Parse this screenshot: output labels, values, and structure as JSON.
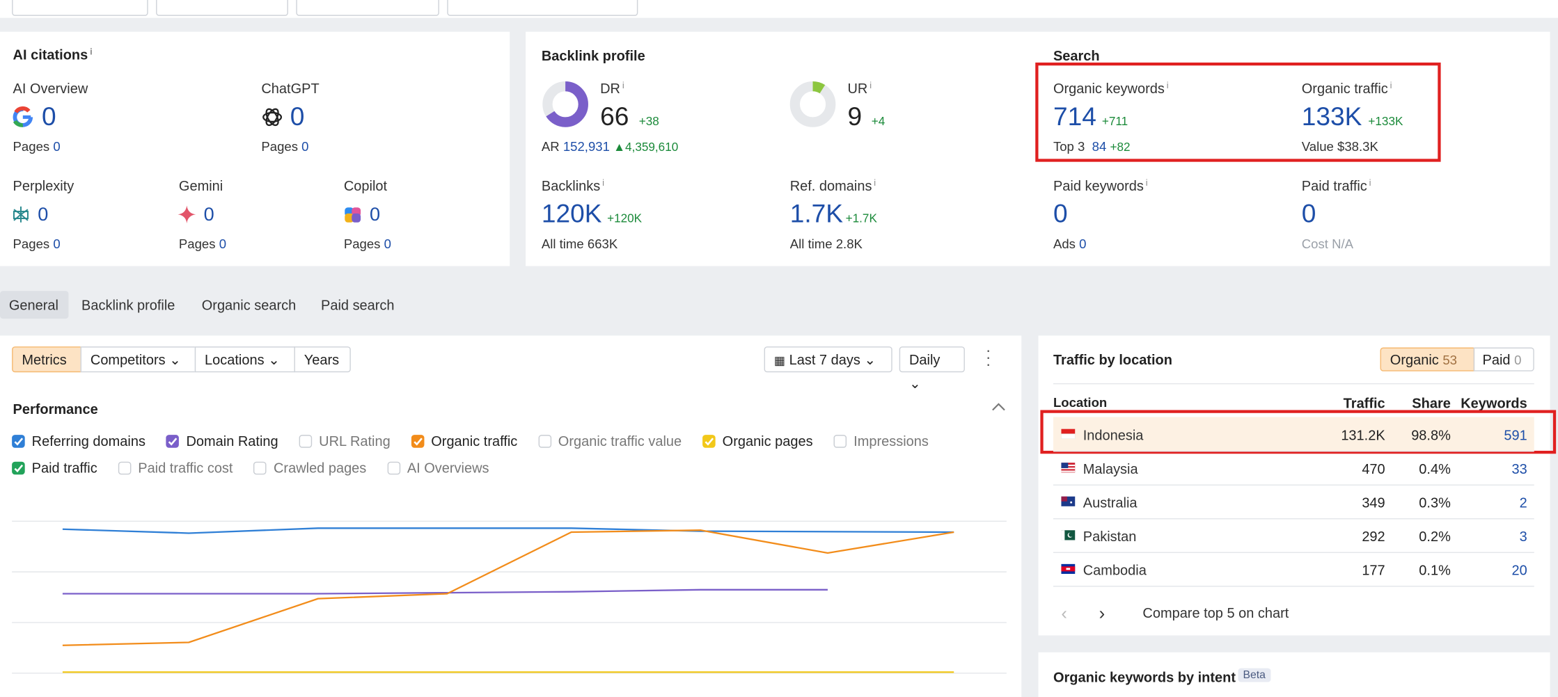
{
  "ai_citations": {
    "title": "AI citations",
    "info": "i",
    "items": [
      {
        "name": "AI Overview",
        "value": "0",
        "pages_label": "Pages",
        "pages": "0"
      },
      {
        "name": "ChatGPT",
        "value": "0",
        "pages_label": "Pages",
        "pages": "0"
      },
      {
        "name": "Perplexity",
        "value": "0",
        "pages_label": "Pages",
        "pages": "0"
      },
      {
        "name": "Gemini",
        "value": "0",
        "pages_label": "Pages",
        "pages": "0"
      },
      {
        "name": "Copilot",
        "value": "0",
        "pages_label": "Pages",
        "pages": "0"
      }
    ]
  },
  "backlink_profile": {
    "title": "Backlink profile",
    "dr": {
      "label": "DR",
      "info": "i",
      "value": "66",
      "change": "+38"
    },
    "ar": {
      "label": "AR",
      "value": "152,931",
      "change": "4,359,610"
    },
    "ur": {
      "label": "UR",
      "info": "i",
      "value": "9",
      "change": "+4"
    },
    "backlinks": {
      "label": "Backlinks",
      "info": "i",
      "value": "120K",
      "change": "+120K",
      "sub_label": "All time",
      "sub_value": "663K"
    },
    "ref_domains": {
      "label": "Ref. domains",
      "info": "i",
      "value": "1.7K",
      "change": "+1.7K",
      "sub_label": "All time",
      "sub_value": "2.8K"
    }
  },
  "search": {
    "title": "Search",
    "organic_keywords": {
      "label": "Organic keywords",
      "info": "i",
      "value": "714",
      "change": "+711",
      "sub_label": "Top 3",
      "sub_value": "84",
      "sub_change": "+82"
    },
    "organic_traffic": {
      "label": "Organic traffic",
      "info": "i",
      "value": "133K",
      "change": "+133K",
      "sub_label": "Value",
      "sub_value": "$38.3K"
    },
    "paid_keywords": {
      "label": "Paid keywords",
      "info": "i",
      "value": "0",
      "sub_label": "Ads",
      "sub_value": "0"
    },
    "paid_traffic": {
      "label": "Paid traffic",
      "info": "i",
      "value": "0",
      "sub_label": "Cost",
      "sub_value": "N/A"
    }
  },
  "tabs": [
    "General",
    "Backlink profile",
    "Organic search",
    "Paid search"
  ],
  "toolbar": {
    "buttons": [
      "Metrics",
      "Competitors",
      "Locations",
      "Years"
    ],
    "date_range": "Last 7 days",
    "interval": "Daily"
  },
  "performance": {
    "title": "Performance",
    "metrics": [
      {
        "label": "Referring domains",
        "checked": true,
        "color": "#2f7fd6"
      },
      {
        "label": "Domain Rating",
        "checked": true,
        "color": "#7a5fc9"
      },
      {
        "label": "URL Rating",
        "checked": false,
        "color": "#c9cdd3"
      },
      {
        "label": "Organic traffic",
        "checked": true,
        "color": "#f28c1a"
      },
      {
        "label": "Organic traffic value",
        "checked": false,
        "color": "#c9cdd3"
      },
      {
        "label": "Organic pages",
        "checked": true,
        "color": "#f2c81a"
      },
      {
        "label": "Impressions",
        "checked": false,
        "color": "#c9cdd3"
      },
      {
        "label": "Paid traffic",
        "checked": true,
        "color": "#22a35a"
      },
      {
        "label": "Paid traffic cost",
        "checked": false,
        "color": "#c9cdd3"
      },
      {
        "label": "Crawled pages",
        "checked": false,
        "color": "#c9cdd3"
      },
      {
        "label": "AI Overviews",
        "checked": false,
        "color": "#c9cdd3"
      }
    ]
  },
  "traffic_by_location": {
    "title": "Traffic by location",
    "toggle": [
      {
        "label": "Organic",
        "count": "53"
      },
      {
        "label": "Paid",
        "count": "0"
      }
    ],
    "columns": [
      "Location",
      "Traffic",
      "Share",
      "Keywords"
    ],
    "rows": [
      [
        "Indonesia",
        "131.2K",
        "98.8%",
        "591"
      ],
      [
        "Malaysia",
        "470",
        "0.4%",
        "33"
      ],
      [
        "Australia",
        "349",
        "0.3%",
        "2"
      ],
      [
        "Pakistan",
        "292",
        "0.2%",
        "3"
      ],
      [
        "Cambodia",
        "177",
        "0.1%",
        "20"
      ]
    ],
    "footer": "Compare top 5 on chart"
  },
  "intent": {
    "title": "Organic keywords by intent",
    "badge": "Beta"
  }
}
